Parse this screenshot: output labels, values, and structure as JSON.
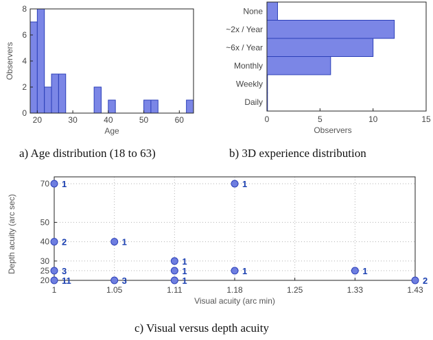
{
  "colors": {
    "bar_fill": "#7b86e6",
    "bar_stroke": "#2b3fb8",
    "point": "#6e7ee0",
    "count_text": "#1a3fb0",
    "grid": "#b0b0b0"
  },
  "captions": {
    "a": "a) Age distribution (18 to 63)",
    "b": "b) 3D experience distribution",
    "c": "c) Visual versus depth acuity"
  },
  "chart_data": [
    {
      "type": "bar",
      "xlabel": "Age",
      "ylabel": "Observers",
      "xlim": [
        18,
        64
      ],
      "ylim": [
        0,
        8
      ],
      "xticks": [
        20,
        30,
        40,
        50,
        60
      ],
      "yticks": [
        0,
        2,
        4,
        6,
        8
      ],
      "bin_width": 2,
      "bins": [
        {
          "start": 18,
          "value": 7
        },
        {
          "start": 20,
          "value": 8
        },
        {
          "start": 22,
          "value": 2
        },
        {
          "start": 24,
          "value": 3
        },
        {
          "start": 26,
          "value": 3
        },
        {
          "start": 36,
          "value": 2
        },
        {
          "start": 40,
          "value": 1
        },
        {
          "start": 50,
          "value": 1
        },
        {
          "start": 52,
          "value": 1
        },
        {
          "start": 62,
          "value": 1
        }
      ]
    },
    {
      "type": "bar",
      "orientation": "horizontal",
      "xlabel": "Observers",
      "xlim": [
        0,
        15
      ],
      "xticks": [
        0,
        5,
        10,
        15
      ],
      "categories": [
        "None",
        "~2x / Year",
        "~6x / Year",
        "Monthly",
        "Weekly",
        "Daily"
      ],
      "values": [
        1,
        12,
        10,
        6,
        0,
        0
      ]
    },
    {
      "type": "scatter",
      "xlabel": "Visual acuity (arc min)",
      "ylabel": "Depth acuity (arc sec)",
      "grid": true,
      "xticks": [
        "1",
        "1.05",
        "1.11",
        "1.18",
        "1.25",
        "1.33",
        "1.43"
      ],
      "yticks": [
        "20",
        "25",
        "30",
        "40",
        "50",
        "70"
      ],
      "points": [
        {
          "x": "1",
          "y": "70",
          "count": "1"
        },
        {
          "x": "1.18",
          "y": "70",
          "count": "1"
        },
        {
          "x": "1",
          "y": "40",
          "count": "2"
        },
        {
          "x": "1.05",
          "y": "40",
          "count": "1"
        },
        {
          "x": "1.11",
          "y": "30",
          "count": "1"
        },
        {
          "x": "1",
          "y": "25",
          "count": "3"
        },
        {
          "x": "1.11",
          "y": "25",
          "count": "1"
        },
        {
          "x": "1.18",
          "y": "25",
          "count": "1"
        },
        {
          "x": "1.33",
          "y": "25",
          "count": "1"
        },
        {
          "x": "1",
          "y": "20",
          "count": "11"
        },
        {
          "x": "1.05",
          "y": "20",
          "count": "3"
        },
        {
          "x": "1.11",
          "y": "20",
          "count": "1"
        },
        {
          "x": "1.43",
          "y": "20",
          "count": "2"
        }
      ]
    }
  ]
}
